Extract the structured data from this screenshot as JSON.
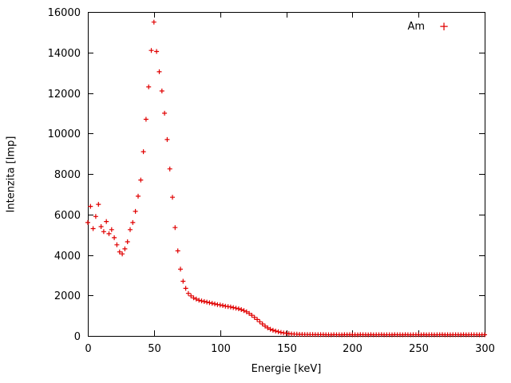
{
  "chart_data": {
    "type": "scatter",
    "title": "",
    "xlabel": "Energie [keV]",
    "ylabel": "Intenzita [Imp]",
    "xlim": [
      0,
      300
    ],
    "ylim": [
      0,
      16000
    ],
    "x_ticks": [
      0,
      50,
      100,
      150,
      200,
      250,
      300
    ],
    "y_ticks": [
      0,
      2000,
      4000,
      6000,
      8000,
      10000,
      12000,
      14000,
      16000
    ],
    "grid": false,
    "legend_position": "top-right-inside",
    "marker_glyph": "+",
    "series": [
      {
        "name": "Am",
        "marker": "plus",
        "color": "#e00000",
        "x": [
          0,
          2,
          4,
          6,
          8,
          10,
          12,
          14,
          16,
          18,
          20,
          22,
          24,
          26,
          28,
          30,
          32,
          34,
          36,
          38,
          40,
          42,
          44,
          46,
          48,
          50,
          52,
          54,
          56,
          58,
          60,
          62,
          64,
          66,
          68,
          70,
          72,
          74,
          76,
          78,
          80,
          82,
          84,
          86,
          88,
          90,
          92,
          94,
          96,
          98,
          100,
          102,
          104,
          106,
          108,
          110,
          112,
          114,
          116,
          118,
          120,
          122,
          124,
          126,
          128,
          130,
          132,
          134,
          136,
          138,
          140,
          142,
          144,
          146,
          148,
          150,
          152,
          154,
          156,
          158,
          160,
          162,
          164,
          166,
          168,
          170,
          172,
          174,
          176,
          178,
          180,
          182,
          184,
          186,
          188,
          190,
          192,
          194,
          196,
          198,
          200,
          202,
          204,
          206,
          208,
          210,
          212,
          214,
          216,
          218,
          220,
          222,
          224,
          226,
          228,
          230,
          232,
          234,
          236,
          238,
          240,
          242,
          244,
          246,
          248,
          250,
          252,
          254,
          256,
          258,
          260,
          262,
          264,
          266,
          268,
          270,
          272,
          274,
          276,
          278,
          280,
          282,
          284,
          286,
          288,
          290,
          292,
          294,
          296,
          298,
          300
        ],
        "y": [
          5600,
          6400,
          5300,
          5900,
          6500,
          5400,
          5150,
          5650,
          5050,
          5250,
          4850,
          4500,
          4150,
          4050,
          4300,
          4650,
          5250,
          5600,
          6150,
          6900,
          7700,
          9100,
          10700,
          12300,
          14100,
          15500,
          14050,
          13050,
          12100,
          11000,
          9700,
          8250,
          6850,
          5350,
          4200,
          3300,
          2700,
          2350,
          2100,
          1980,
          1880,
          1820,
          1760,
          1730,
          1700,
          1670,
          1640,
          1610,
          1580,
          1550,
          1530,
          1500,
          1470,
          1450,
          1430,
          1400,
          1370,
          1340,
          1300,
          1250,
          1190,
          1110,
          1020,
          920,
          810,
          700,
          590,
          490,
          400,
          330,
          280,
          240,
          205,
          175,
          150,
          130,
          115,
          100,
          92,
          85,
          80,
          76,
          72,
          70,
          68,
          66,
          65,
          64,
          63,
          62,
          61,
          60,
          57,
          63,
          58,
          61,
          56,
          62,
          59,
          64,
          57,
          60,
          55,
          62,
          58,
          61,
          57,
          63,
          56,
          60,
          58,
          62,
          55,
          59,
          61,
          57,
          63,
          58,
          60,
          56,
          62,
          59,
          57,
          61,
          58,
          60,
          55,
          62,
          57,
          59,
          61,
          56,
          60,
          58,
          63,
          57,
          59,
          55,
          61,
          58,
          60,
          56,
          62,
          57,
          60,
          58,
          59,
          61,
          56,
          60,
          58
        ]
      }
    ]
  }
}
